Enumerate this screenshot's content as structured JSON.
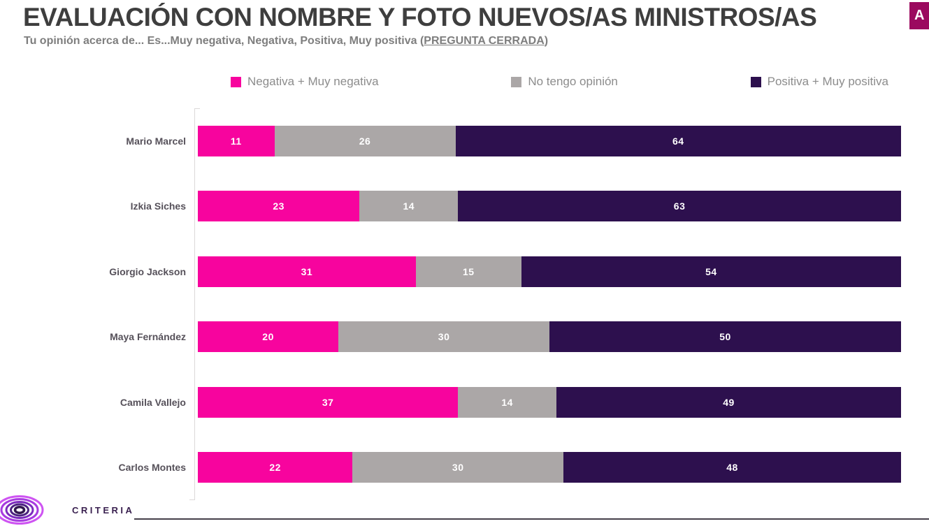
{
  "badge": {
    "label": "A",
    "color": "#9B0A5F"
  },
  "header": {
    "title": "EVALUACIÓN CON NOMBRE Y FOTO NUEVOS/AS MINISTROS/AS",
    "subtitle_prefix": "Tu opinión acerca de... Es...Muy negativa, Negativa, Positiva, Muy positiva (",
    "subtitle_emphasis": "PREGUNTA CERRADA",
    "subtitle_suffix": ")"
  },
  "chart_data": {
    "type": "bar",
    "orientation": "horizontal",
    "stacked": true,
    "normalized_to_100": true,
    "grid": false,
    "legend_position": "top",
    "value_labels": "white, centered in each segment",
    "categories": [
      "Mario Marcel",
      "Izkia Siches",
      "Giorgio Jackson",
      "Maya Fernández",
      "Camila Vallejo",
      "Carlos Montes"
    ],
    "series": [
      {
        "name": "Negativa + Muy negativa",
        "color": "#F7049E",
        "values": [
          11,
          23,
          31,
          20,
          37,
          22
        ]
      },
      {
        "name": "No tengo opinión",
        "color": "#ABA7A7",
        "values": [
          26,
          14,
          15,
          30,
          14,
          30
        ]
      },
      {
        "name": "Positiva + Muy positiva",
        "color": "#2D104E",
        "values": [
          64,
          63,
          54,
          50,
          49,
          48
        ]
      }
    ],
    "xlim": [
      0,
      100
    ]
  },
  "footer": {
    "brand": "CRITERIA",
    "logo_icon": "criteria-rings-icon",
    "logo_colors": [
      "#CE54F2",
      "#A83BE0",
      "#7C2BBE",
      "#4B2380",
      "#32184F"
    ]
  }
}
